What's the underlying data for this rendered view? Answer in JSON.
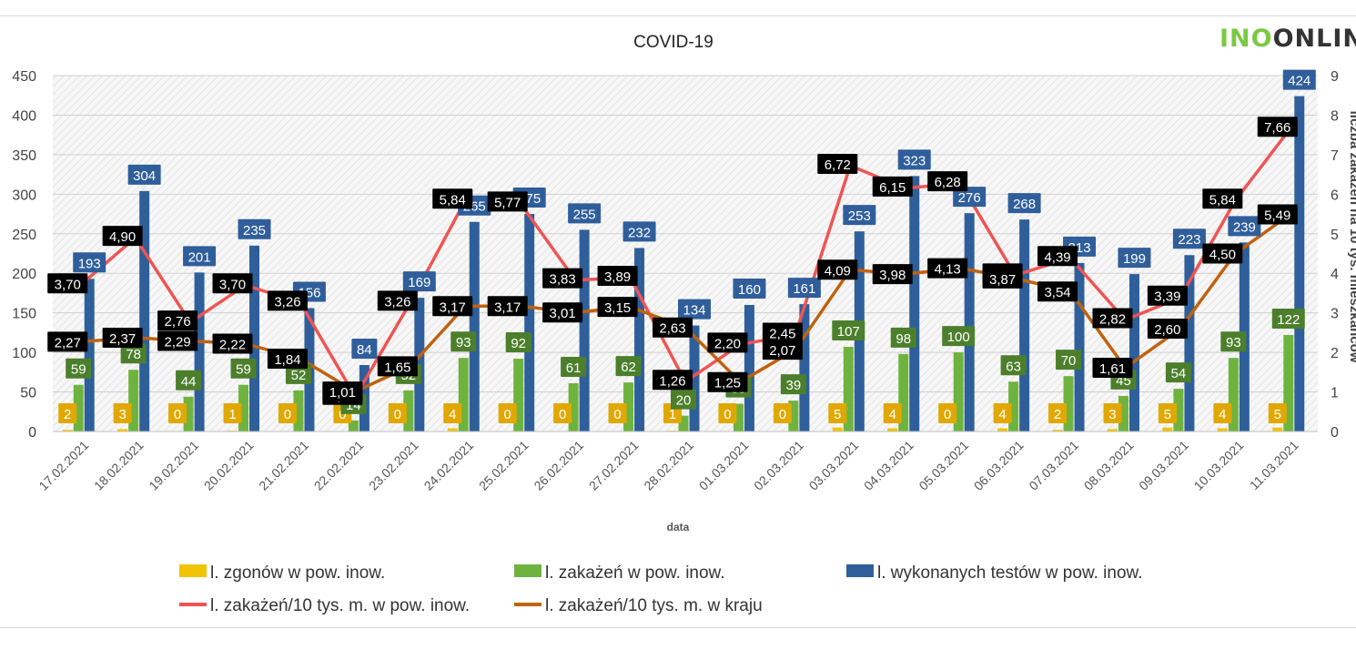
{
  "logo": {
    "part1": "INO",
    "part2": "ONLIN"
  },
  "colors": {
    "deaths": "#f2c300",
    "infections": "#6fb33f",
    "tests": "#2e5f9a",
    "rate_pow": "#f05454",
    "rate_kraj": "#c0620f",
    "label_deaths_bg": "#e0a800",
    "label_infections_bg": "#4c7f2c",
    "label_tests_bg": "#2f5e9b",
    "label_pow_bg": "#ee5050",
    "label_kraj_bg": "#b65a10"
  },
  "chart_data": {
    "type": "bar",
    "title": "COVID-19",
    "xlabel": "data",
    "ylabel_right": "liczba zakażeń na 10 tys. mieszkańców",
    "ylim": [
      0,
      450
    ],
    "yticks": [
      0,
      50,
      100,
      150,
      200,
      250,
      300,
      350,
      400,
      450
    ],
    "y2lim": [
      0,
      9
    ],
    "y2ticks": [
      0,
      1,
      2,
      3,
      4,
      5,
      6,
      7,
      8,
      9
    ],
    "categories": [
      "17.02.2021",
      "18.02.2021",
      "19.02.2021",
      "20.02.2021",
      "21.02.2021",
      "22.02.2021",
      "23.02.2021",
      "24.02.2021",
      "25.02.2021",
      "26.02.2021",
      "27.02.2021",
      "28.02.2021",
      "01.03.2021",
      "02.03.2021",
      "03.03.2021",
      "04.03.2021",
      "05.03.2021",
      "06.03.2021",
      "07.03.2021",
      "08.03.2021",
      "09.03.2021",
      "10.03.2021",
      "11.03.2021"
    ],
    "series": [
      {
        "key": "deaths",
        "name": "l. zgonów w pow. inow.",
        "kind": "bar",
        "axis": "left",
        "values": [
          2,
          3,
          0,
          1,
          0,
          0,
          0,
          4,
          0,
          0,
          0,
          1,
          0,
          0,
          5,
          4,
          0,
          4,
          2,
          3,
          5,
          4,
          5
        ]
      },
      {
        "key": "infections",
        "name": "l. zakażeń w pow. inow.",
        "kind": "bar",
        "axis": "left",
        "values": [
          59,
          78,
          44,
          59,
          52,
          14,
          52,
          93,
          92,
          61,
          62,
          20,
          35,
          39,
          107,
          98,
          100,
          63,
          70,
          45,
          54,
          93,
          122
        ]
      },
      {
        "key": "tests",
        "name": "l. wykonanych testów w pow. inow.",
        "kind": "bar",
        "axis": "left",
        "values": [
          193,
          304,
          201,
          235,
          156,
          84,
          169,
          265,
          275,
          255,
          232,
          134,
          160,
          161,
          253,
          323,
          276,
          268,
          213,
          199,
          223,
          239,
          424
        ]
      },
      {
        "key": "rate_pow",
        "name": "l. zakażeń/10 tys. m. w pow. inow.",
        "kind": "line",
        "axis": "right",
        "values": [
          3.7,
          4.9,
          2.76,
          3.7,
          3.26,
          0.88,
          3.26,
          5.84,
          5.77,
          3.83,
          3.89,
          1.26,
          2.2,
          2.45,
          6.72,
          6.15,
          6.28,
          3.95,
          4.39,
          2.82,
          3.39,
          5.84,
          7.66
        ],
        "labels": [
          "3,70",
          "4,90",
          "2,76",
          "3,70",
          "3,26",
          "0,88",
          "3,26",
          "5,84",
          "5,77",
          "3,83",
          "3,89",
          "1,26",
          "2,20",
          "2,45",
          "6,72",
          "6,15",
          "6,28",
          "3,95",
          "4,39",
          "2,82",
          "3,39",
          "5,84",
          "7,66"
        ]
      },
      {
        "key": "rate_kraj",
        "name": "l. zakażeń/10 tys. m. w kraju",
        "kind": "line",
        "axis": "right",
        "values": [
          2.27,
          2.37,
          2.29,
          2.22,
          1.84,
          1.01,
          1.65,
          3.17,
          3.17,
          3.01,
          3.15,
          2.63,
          1.25,
          2.07,
          4.09,
          3.98,
          4.13,
          3.87,
          3.54,
          1.61,
          2.6,
          4.5,
          5.49
        ],
        "labels": [
          "2,27",
          "2,37",
          "2,29",
          "2,22",
          "1,84",
          "1,01",
          "1,65",
          "3,17",
          "3,17",
          "3,01",
          "3,15",
          "2,63",
          "1,25",
          "2,07",
          "4,09",
          "3,98",
          "4,13",
          "3,87",
          "3,54",
          "1,61",
          "2,60",
          "4,50",
          "5,49"
        ]
      }
    ],
    "legend_position": "bottom",
    "grid": true
  }
}
